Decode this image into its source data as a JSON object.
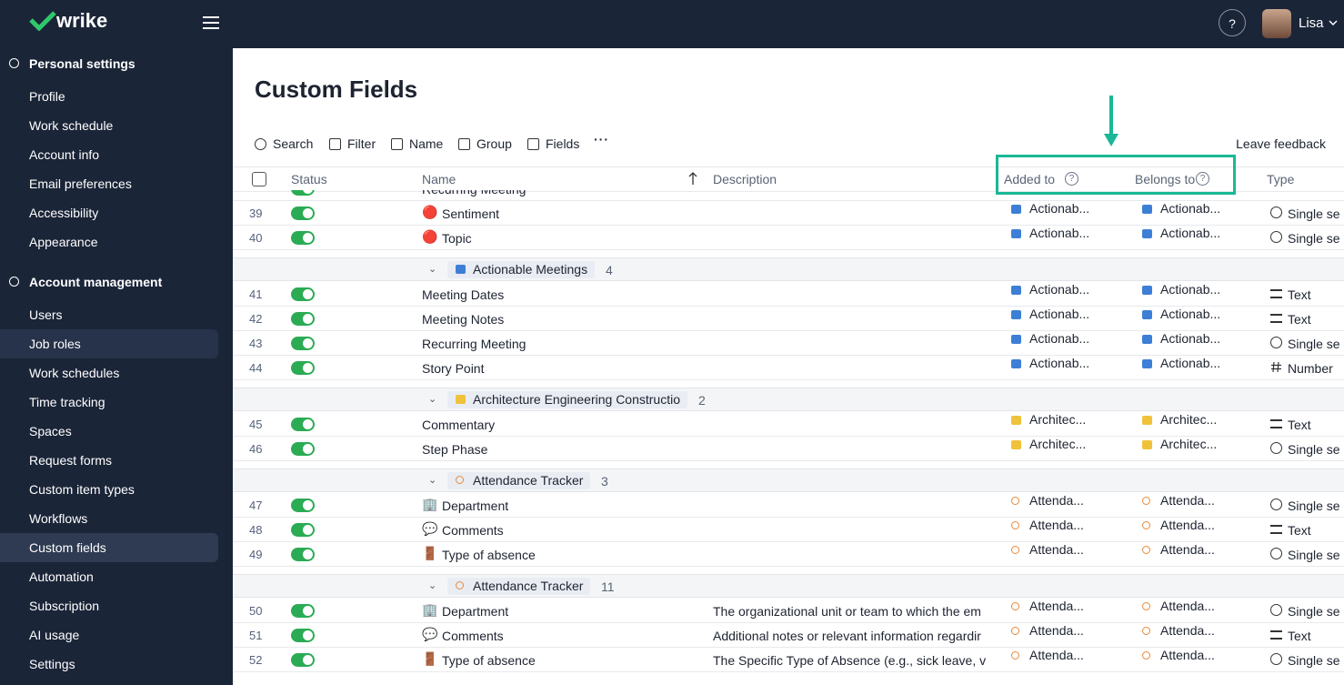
{
  "header": {
    "logo": "wrike",
    "user": "Lisa"
  },
  "sidebar": {
    "sections": [
      {
        "title": "Personal settings",
        "items": [
          {
            "label": "Profile"
          },
          {
            "label": "Work schedule"
          },
          {
            "label": "Account info"
          },
          {
            "label": "Email preferences"
          },
          {
            "label": "Accessibility"
          },
          {
            "label": "Appearance"
          }
        ]
      },
      {
        "title": "Account management",
        "items": [
          {
            "label": "Users"
          },
          {
            "label": "Job roles",
            "hovered": true
          },
          {
            "label": "Work schedules"
          },
          {
            "label": "Time tracking"
          },
          {
            "label": "Spaces"
          },
          {
            "label": "Request forms"
          },
          {
            "label": "Custom item types"
          },
          {
            "label": "Workflows"
          },
          {
            "label": "Custom fields",
            "active": true
          },
          {
            "label": "Automation"
          },
          {
            "label": "Subscription"
          },
          {
            "label": "AI usage"
          },
          {
            "label": "Settings"
          }
        ]
      }
    ]
  },
  "page": {
    "title": "Custom Fields",
    "toolbar": [
      "Search",
      "Filter",
      "Name",
      "Group",
      "Fields"
    ],
    "feedback": "Leave feedback"
  },
  "table": {
    "columns": [
      "Status",
      "Name",
      "Description",
      "Added to",
      "Belongs to",
      "Type"
    ],
    "items": [
      {
        "kind": "row",
        "name": "Recurring Meeting"
      },
      {
        "kind": "row",
        "num": 39,
        "name": "Sentiment",
        "icon": "🔴",
        "added": "Actionab...",
        "belongs": "Actionab...",
        "type": "Single se"
      },
      {
        "kind": "row",
        "num": 40,
        "name": "Topic",
        "icon": "🔴",
        "added": "Actionab...",
        "belongs": "Actionab...",
        "type": "Single se"
      },
      {
        "kind": "group",
        "name": "Actionable Meetings",
        "count": 4,
        "color": "#3d7fd6"
      },
      {
        "kind": "row",
        "num": 41,
        "name": "Meeting Dates",
        "added": "Actionab...",
        "belongs": "Actionab...",
        "type": "Text"
      },
      {
        "kind": "row",
        "num": 42,
        "name": "Meeting Notes",
        "added": "Actionab...",
        "belongs": "Actionab...",
        "type": "Text"
      },
      {
        "kind": "row",
        "num": 43,
        "name": "Recurring Meeting",
        "added": "Actionab...",
        "belongs": "Actionab...",
        "type": "Single se"
      },
      {
        "kind": "row",
        "num": 44,
        "name": "Story Point",
        "added": "Actionab...",
        "belongs": "Actionab...",
        "type": "Number"
      },
      {
        "kind": "group",
        "name": "Architecture Engineering Constructio",
        "count": 2,
        "color": "#f0c23b"
      },
      {
        "kind": "row",
        "num": 45,
        "name": "Commentary",
        "added": "Architec...",
        "belongs": "Architec...",
        "type": "Text"
      },
      {
        "kind": "row",
        "num": 46,
        "name": "Step Phase",
        "added": "Architec...",
        "belongs": "Architec...",
        "type": "Single se"
      },
      {
        "kind": "group",
        "name": "Attendance Tracker",
        "count": 3,
        "color": "#e8893a"
      },
      {
        "kind": "row",
        "num": 47,
        "name": "Department",
        "icon": "🏢",
        "added": "Attenda...",
        "belongs": "Attenda...",
        "type": "Single se"
      },
      {
        "kind": "row",
        "num": 48,
        "name": "Comments",
        "icon": "💬",
        "added": "Attenda...",
        "belongs": "Attenda...",
        "type": "Text"
      },
      {
        "kind": "row",
        "num": 49,
        "name": "Type of absence",
        "icon": "🚪",
        "added": "Attenda...",
        "belongs": "Attenda...",
        "type": "Single se"
      },
      {
        "kind": "group",
        "name": "Attendance Tracker",
        "count": 11,
        "color": "#e8893a"
      },
      {
        "kind": "row",
        "num": 50,
        "name": "Department",
        "icon": "🏢",
        "description": "The organizational unit or team to which the em",
        "added": "Attenda...",
        "belongs": "Attenda...",
        "type": "Single se"
      },
      {
        "kind": "row",
        "num": 51,
        "name": "Comments",
        "icon": "💬",
        "description": "Additional notes or relevant information regardir",
        "added": "Attenda...",
        "belongs": "Attenda...",
        "type": "Text"
      },
      {
        "kind": "row",
        "num": 52,
        "name": "Type of absence",
        "icon": "🚪",
        "description": "The Specific Type of Absence (e.g., sick leave, v",
        "added": "Attenda...",
        "belongs": "Attenda...",
        "type": "Single se"
      }
    ]
  }
}
